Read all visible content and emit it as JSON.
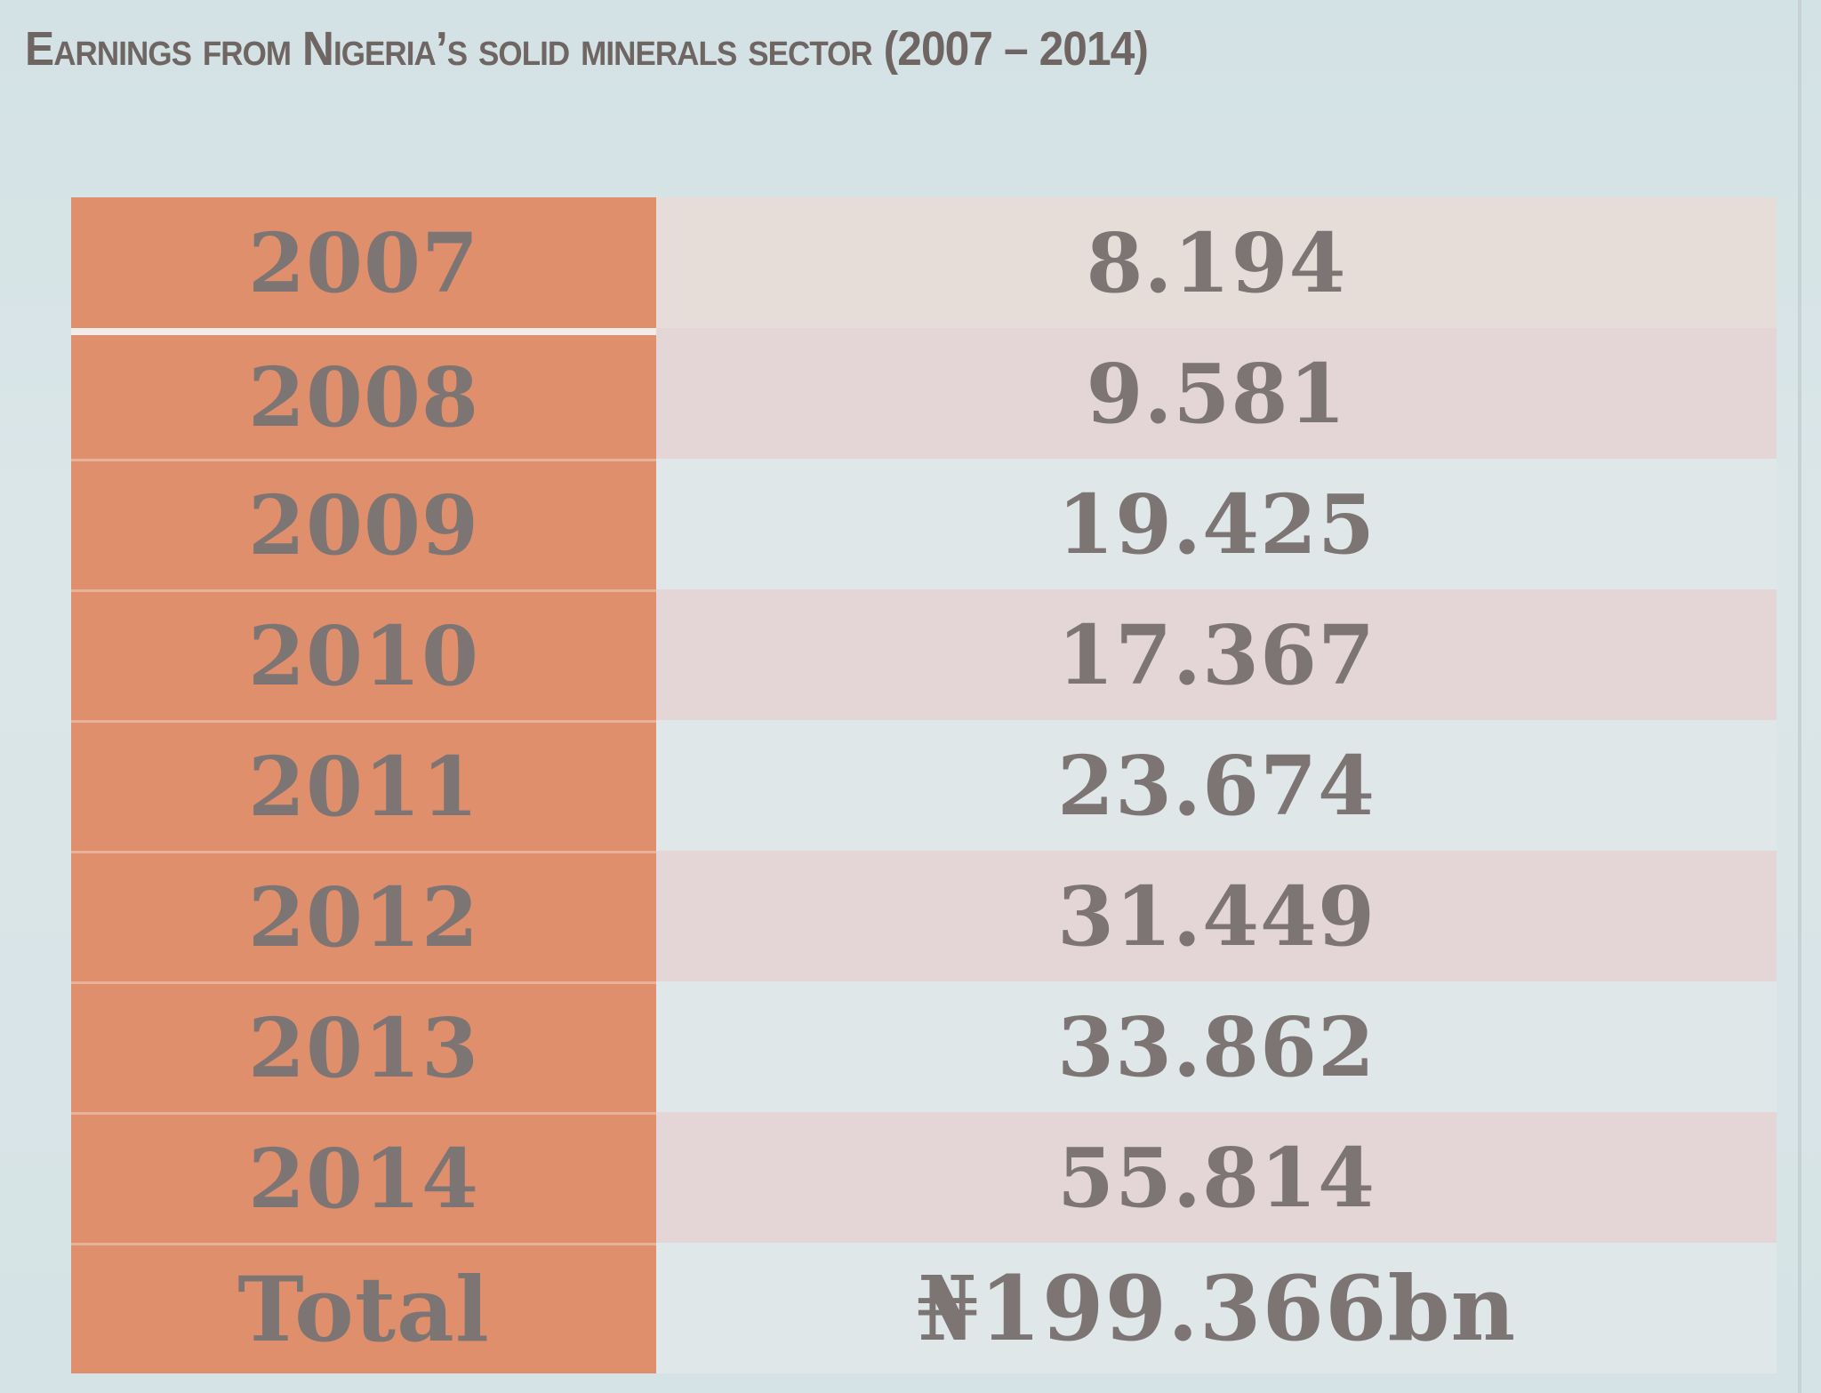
{
  "title": "Earnings from Nigeria’s solid minerals sector (2007 – 2014)",
  "rows": [
    {
      "year": "2007",
      "value": "8.194"
    },
    {
      "year": "2008",
      "value": "9.581"
    },
    {
      "year": "2009",
      "value": "19.425"
    },
    {
      "year": "2010",
      "value": "17.367"
    },
    {
      "year": "2011",
      "value": "23.674"
    },
    {
      "year": "2012",
      "value": "31.449"
    },
    {
      "year": "2013",
      "value": "33.862"
    },
    {
      "year": "2014",
      "value": "55.814"
    }
  ],
  "total": {
    "label": "Total",
    "value": "₦199.366bn"
  },
  "colors": {
    "year_column": "#df8f6c",
    "text": "#7d7574",
    "background": "#d6e3e6"
  }
}
